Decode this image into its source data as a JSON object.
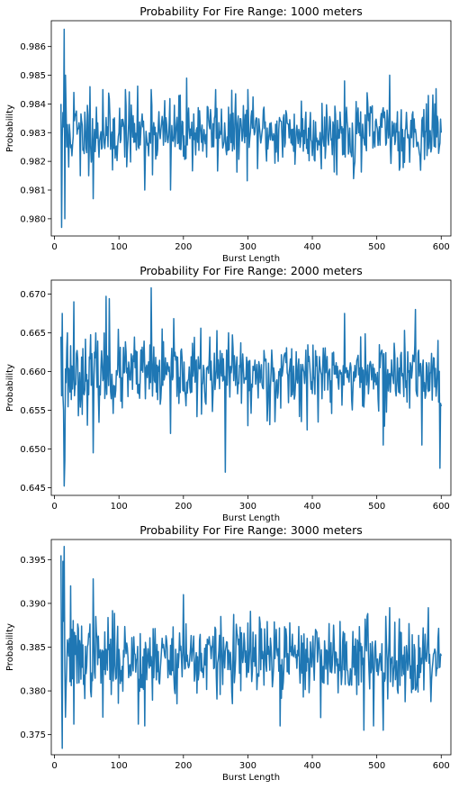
{
  "chart_data": [
    {
      "type": "line",
      "title": "Probability For Fire Range: 1000 meters",
      "xlabel": "Burst Length",
      "ylabel": "Probability",
      "xlim": [
        -5,
        615
      ],
      "ylim": [
        0.9794,
        0.9869
      ],
      "xticks": [
        0,
        100,
        200,
        300,
        400,
        500,
        600
      ],
      "yticks": [
        0.98,
        0.981,
        0.982,
        0.983,
        0.984,
        0.985,
        0.986
      ],
      "ytick_labels": [
        "0.980",
        "0.981",
        "0.982",
        "0.983",
        "0.984",
        "0.985",
        "0.986"
      ],
      "grid": false,
      "series": [
        {
          "color": "#1f77b4",
          "x_start": 10,
          "x_step": 1,
          "keypoints": [
            [
              10,
              0.984
            ],
            [
              11,
              0.9797
            ],
            [
              13,
              0.9837
            ],
            [
              14,
              0.9832
            ],
            [
              15,
              0.9866
            ],
            [
              16,
              0.98
            ],
            [
              17,
              0.985
            ],
            [
              19,
              0.9825
            ],
            [
              22,
              0.9818
            ],
            [
              30,
              0.9844
            ],
            [
              40,
              0.9815
            ],
            [
              55,
              0.9846
            ],
            [
              60,
              0.9807
            ],
            [
              75,
              0.9845
            ],
            [
              90,
              0.9817
            ],
            [
              110,
              0.9845
            ],
            [
              140,
              0.981
            ],
            [
              150,
              0.9845
            ],
            [
              180,
              0.981
            ],
            [
              205,
              0.9849
            ],
            [
              250,
              0.9845
            ],
            [
              300,
              0.9845
            ],
            [
              400,
              0.9822
            ],
            [
              450,
              0.9848
            ],
            [
              465,
              0.9818
            ],
            [
              520,
              0.985
            ],
            [
              590,
              0.984
            ],
            [
              600,
              0.983
            ]
          ],
          "mean": 0.983,
          "spread": 0.0007,
          "seed": 11
        }
      ]
    },
    {
      "type": "line",
      "title": "Probability For Fire Range: 2000 meters",
      "xlabel": "Burst Length",
      "ylabel": "Probability",
      "xlim": [
        -5,
        615
      ],
      "ylim": [
        0.644,
        0.6718
      ],
      "xticks": [
        0,
        100,
        200,
        300,
        400,
        500,
        600
      ],
      "yticks": [
        0.645,
        0.65,
        0.655,
        0.66,
        0.665,
        0.67
      ],
      "ytick_labels": [
        "0.645",
        "0.650",
        "0.655",
        "0.660",
        "0.665",
        "0.670"
      ],
      "grid": false,
      "series": [
        {
          "color": "#1f77b4",
          "x_start": 10,
          "x_step": 1,
          "keypoints": [
            [
              10,
              0.6645
            ],
            [
              12,
              0.6675
            ],
            [
              14,
              0.655
            ],
            [
              15,
              0.6452
            ],
            [
              16,
              0.6485
            ],
            [
              20,
              0.665
            ],
            [
              30,
              0.669
            ],
            [
              60,
              0.6495
            ],
            [
              80,
              0.6697
            ],
            [
              85,
              0.6694
            ],
            [
              150,
              0.6708
            ],
            [
              180,
              0.652
            ],
            [
              265,
              0.647
            ],
            [
              270,
              0.665
            ],
            [
              300,
              0.653
            ],
            [
              450,
              0.6675
            ],
            [
              510,
              0.6505
            ],
            [
              560,
              0.668
            ],
            [
              570,
              0.6505
            ],
            [
              595,
              0.664
            ],
            [
              598,
              0.6475
            ],
            [
              600,
              0.6555
            ]
          ],
          "mean": 0.6595,
          "spread": 0.0028,
          "seed": 23
        }
      ]
    },
    {
      "type": "line",
      "title": "Probability For Fire Range: 3000 meters",
      "xlabel": "Burst Length",
      "ylabel": "Probability",
      "xlim": [
        -5,
        615
      ],
      "ylim": [
        0.3727,
        0.3973
      ],
      "xticks": [
        0,
        100,
        200,
        300,
        400,
        500,
        600
      ],
      "yticks": [
        0.375,
        0.38,
        0.385,
        0.39,
        0.395
      ],
      "ytick_labels": [
        "0.375",
        "0.380",
        "0.385",
        "0.390",
        "0.395"
      ],
      "grid": false,
      "series": [
        {
          "color": "#1f77b4",
          "x_start": 10,
          "x_step": 1,
          "keypoints": [
            [
              10,
              0.3955
            ],
            [
              12,
              0.3733
            ],
            [
              13,
              0.3948
            ],
            [
              15,
              0.3965
            ],
            [
              17,
              0.377
            ],
            [
              25,
              0.392
            ],
            [
              30,
              0.3762
            ],
            [
              60,
              0.3928
            ],
            [
              75,
              0.377
            ],
            [
              130,
              0.3762
            ],
            [
              140,
              0.376
            ],
            [
              200,
              0.391
            ],
            [
              350,
              0.376
            ],
            [
              480,
              0.3755
            ],
            [
              495,
              0.376
            ],
            [
              510,
              0.3755
            ],
            [
              520,
              0.3895
            ],
            [
              580,
              0.3895
            ],
            [
              600,
              0.384
            ]
          ],
          "mean": 0.3838,
          "spread": 0.0026,
          "seed": 37
        }
      ]
    }
  ]
}
